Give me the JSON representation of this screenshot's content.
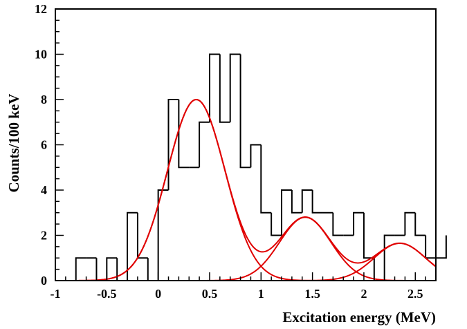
{
  "chart_data": {
    "type": "histogram",
    "xlabel": "Excitation energy (MeV)",
    "ylabel": "Counts/100 keV",
    "xlim": [
      -1,
      2.7
    ],
    "ylim": [
      0,
      12
    ],
    "x_ticks": [
      -1,
      -0.5,
      0,
      0.5,
      1,
      1.5,
      2,
      2.5
    ],
    "x_tick_labels": [
      "-1",
      "-0.5",
      "0",
      "0.5",
      "1",
      "1.5",
      "2",
      "2.5"
    ],
    "y_ticks": [
      0,
      2,
      4,
      6,
      8,
      10,
      12
    ],
    "y_tick_labels": [
      "0",
      "2",
      "4",
      "6",
      "8",
      "10",
      "12"
    ],
    "bin_width": 0.1,
    "bin_edges_start": -1.0,
    "counts": [
      0,
      0,
      1,
      1,
      0,
      1,
      0,
      3,
      1,
      0,
      4,
      8,
      5,
      5,
      7,
      10,
      7,
      10,
      5,
      6,
      3,
      2,
      4,
      3,
      4,
      3,
      3,
      2,
      2,
      3,
      1,
      0,
      2,
      2,
      3,
      2,
      1,
      2,
      1
    ],
    "fit_components": [
      {
        "type": "gaussian",
        "amplitude": 8.0,
        "mean": 0.37,
        "sigma": 0.28
      },
      {
        "type": "gaussian",
        "amplitude": 2.8,
        "mean": 1.43,
        "sigma": 0.25
      },
      {
        "type": "gaussian",
        "amplitude": 1.65,
        "mean": 2.35,
        "sigma": 0.25
      }
    ],
    "colors": {
      "histogram": "#000000",
      "fit": "#e00000"
    },
    "grid": false
  }
}
